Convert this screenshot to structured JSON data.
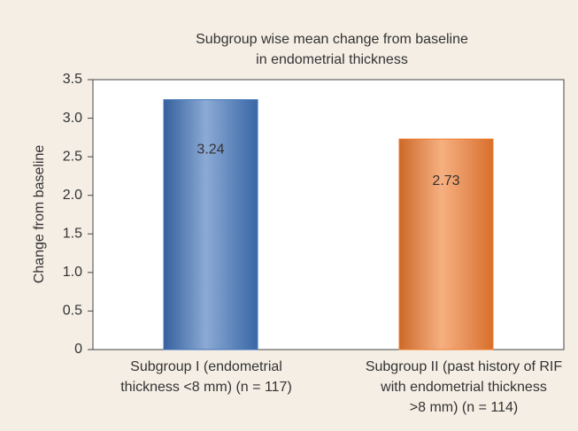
{
  "chart_data": {
    "type": "bar",
    "title": [
      "Subgroup wise mean change from baseline",
      "in endometrial thickness"
    ],
    "y_label": "Change from baseline",
    "categories": [
      [
        "Subgroup I (endometrial",
        "thickness <8 mm) (n = 117)"
      ],
      [
        "Subgroup II (past history of RIF",
        "with endometrial thickness",
        ">8 mm) (n = 114)"
      ]
    ],
    "values": [
      3.24,
      2.73
    ],
    "colors": [
      "#3f72b8",
      "#f07b2c"
    ],
    "ylim": [
      0,
      3.5
    ],
    "yticks": [
      0,
      0.5,
      {
        "value": 1,
        "label": "1.0"
      },
      1.5,
      {
        "value": 2,
        "label": "2.0"
      },
      2.5,
      {
        "value": 3,
        "label": "3.0"
      },
      3.5
    ]
  }
}
